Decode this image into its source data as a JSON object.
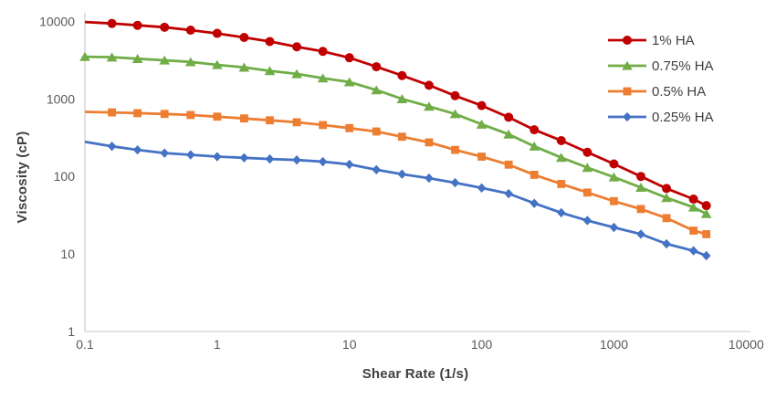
{
  "chart_data": {
    "type": "line",
    "title": "",
    "xlabel": "Shear Rate (1/s)",
    "ylabel": "Viscosity (cP)",
    "x_scale": "log",
    "y_scale": "log",
    "xlim": [
      0.1,
      10000
    ],
    "ylim": [
      1,
      10000
    ],
    "x_ticks": [
      "0.1",
      "1",
      "10",
      "100",
      "1000",
      "10000"
    ],
    "y_ticks": [
      "1",
      "10",
      "100",
      "1000",
      "10000"
    ],
    "grid": false,
    "legend_position": "top-right",
    "x": [
      0.1,
      0.16,
      0.25,
      0.4,
      0.63,
      1,
      1.6,
      2.5,
      4,
      6.3,
      10,
      16,
      25,
      40,
      63,
      100,
      160,
      250,
      400,
      630,
      1000,
      1600,
      2500,
      4000,
      5000
    ],
    "series": [
      {
        "name": "1% HA",
        "color": "#C00000",
        "marker": "circle",
        "marker_size": 5,
        "first_marker_index": 1,
        "values": [
          9800,
          9400,
          8900,
          8400,
          7700,
          7000,
          6200,
          5500,
          4700,
          4100,
          3400,
          2600,
          2000,
          1500,
          1100,
          820,
          580,
          400,
          290,
          205,
          145,
          100,
          70,
          51,
          42
        ]
      },
      {
        "name": "0.75% HA",
        "color": "#70AD47",
        "marker": "triangle",
        "marker_size": 5.2,
        "first_marker_index": 0,
        "values": [
          3500,
          3450,
          3300,
          3150,
          3000,
          2750,
          2550,
          2300,
          2100,
          1850,
          1650,
          1300,
          1000,
          800,
          640,
          470,
          350,
          245,
          175,
          130,
          98,
          72,
          53,
          40,
          33
        ]
      },
      {
        "name": "0.5% HA",
        "color": "#ED7D31",
        "marker": "square",
        "marker_size": 4.4,
        "first_marker_index": 1,
        "values": [
          680,
          670,
          655,
          640,
          620,
          590,
          560,
          530,
          500,
          460,
          420,
          380,
          325,
          275,
          220,
          180,
          142,
          105,
          80,
          62,
          48,
          38,
          29,
          20,
          18
        ]
      },
      {
        "name": "0.25% HA",
        "color": "#4472C4",
        "marker": "diamond",
        "marker_size": 4.8,
        "first_marker_index": 1,
        "values": [
          280,
          245,
          220,
          200,
          190,
          180,
          174,
          168,
          163,
          155,
          143,
          122,
          107,
          95,
          83,
          71,
          60,
          45,
          34,
          27,
          22,
          18,
          13.5,
          11,
          9.5
        ]
      }
    ],
    "style": {
      "axis_line_color": "#D9D9D9",
      "tick_label_color": "#595959",
      "axis_title_color": "#404040",
      "legend_text_color": "#3F3F3F",
      "line_width": 2.8
    }
  }
}
